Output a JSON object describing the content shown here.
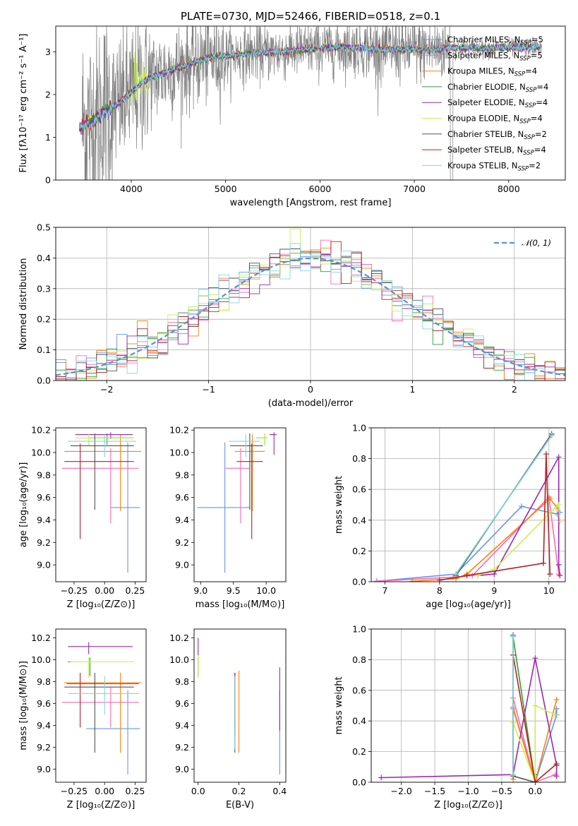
{
  "figure": {
    "title": "PLATE=0730, MJD=52466, FIBERID=0518, z=0.1"
  },
  "models": [
    {
      "name": "Chabrier MILES",
      "nssp": "5",
      "color": "#6495ed"
    },
    {
      "name": "Salpeter MILES",
      "nssp": "5",
      "color": "#ff69b4"
    },
    {
      "name": "Kroupa MILES",
      "nssp": "4",
      "color": "#ff7f0e"
    },
    {
      "name": "Chabrier ELODIE",
      "nssp": "4",
      "color": "#2ca02c"
    },
    {
      "name": "Salpeter ELODIE",
      "nssp": "4",
      "color": "#9c27b0"
    },
    {
      "name": "Kroupa ELODIE",
      "nssp": "4",
      "color": "#c8f050"
    },
    {
      "name": "Chabrier STELIB",
      "nssp": "2",
      "color": "#505050"
    },
    {
      "name": "Salpeter STELIB",
      "nssp": "4",
      "color": "#b22222"
    },
    {
      "name": "Kroupa STELIB",
      "nssp": "2",
      "color": "#7fd8e0"
    }
  ],
  "chart_data": [
    {
      "id": "spectrum",
      "type": "line",
      "title": "PLATE=0730, MJD=52466, FIBERID=0518, z=0.1",
      "xlabel": "wavelength [Angstrom, rest frame]",
      "ylabel": "Flux [fλ10⁻¹⁷ erg cm⁻² s⁻¹ A⁻¹]",
      "xlim": [
        3200,
        8600
      ],
      "ylim": [
        0,
        3.6
      ],
      "xticks": [
        "4000",
        "5000",
        "6000",
        "7000",
        "8000"
      ],
      "yticks": [
        "0",
        "1",
        "2",
        "3"
      ],
      "continuum": [
        [
          3450,
          1.25
        ],
        [
          3600,
          1.35
        ],
        [
          3700,
          1.55
        ],
        [
          3800,
          1.7
        ],
        [
          3900,
          1.85
        ],
        [
          4000,
          2.05
        ],
        [
          4100,
          2.25
        ],
        [
          4200,
          2.4
        ],
        [
          4400,
          2.55
        ],
        [
          4600,
          2.7
        ],
        [
          4800,
          2.85
        ],
        [
          5000,
          2.9
        ],
        [
          5200,
          2.95
        ],
        [
          5400,
          2.98
        ],
        [
          5600,
          3.0
        ],
        [
          5800,
          3.05
        ],
        [
          6000,
          3.08
        ],
        [
          6200,
          3.1
        ],
        [
          6400,
          3.1
        ],
        [
          6600,
          3.05
        ],
        [
          6800,
          3.05
        ],
        [
          7000,
          3.05
        ],
        [
          7200,
          3.05
        ],
        [
          7400,
          3.1
        ],
        [
          7800,
          3.08
        ],
        [
          8100,
          3.1
        ],
        [
          8350,
          3.12
        ]
      ],
      "legend_position": "upper right"
    },
    {
      "id": "residuals",
      "type": "line",
      "xlabel": "(data-model)/error",
      "ylabel": "Normed distribution",
      "xlim": [
        -2.5,
        2.5
      ],
      "ylim": [
        0,
        0.5
      ],
      "xticks": [
        "−2",
        "−1",
        "0",
        "1",
        "2"
      ],
      "yticks": [
        "0.0",
        "0.1",
        "0.2",
        "0.3",
        "0.4",
        "0.5"
      ],
      "grid": true,
      "reference": {
        "name": "𝒩(0, 1)",
        "mean": 0,
        "sigma": 1,
        "color": "#5b8ed6"
      },
      "bin_width": 0.1,
      "legend_position": "upper right"
    },
    {
      "id": "age-vs-Z",
      "type": "scatter",
      "xlabel": "Z [log₁₀(Z/Z⊙)]",
      "ylabel": "age  [log₁₀(age/yr)]",
      "xlim": [
        -0.4,
        0.34
      ],
      "ylim": [
        8.85,
        10.22
      ],
      "xticks": [
        -0.25,
        0.0,
        0.25
      ],
      "yticks": [
        9.0,
        9.2,
        9.4,
        9.6,
        9.8,
        10.0,
        10.2
      ],
      "points": [
        {
          "model": 0,
          "x": 0.19,
          "xlo": 0.05,
          "xhi": 0.29,
          "y": 9.51,
          "ylo": 8.93,
          "yhi": 10.09
        },
        {
          "model": 1,
          "x": 0.05,
          "xlo": -0.35,
          "xhi": 0.28,
          "y": 9.86,
          "ylo": 9.37,
          "yhi": 10.04
        },
        {
          "model": 2,
          "x": 0.13,
          "xlo": -0.33,
          "xhi": 0.3,
          "y": 10.01,
          "ylo": 9.48,
          "yhi": 10.16
        },
        {
          "model": 3,
          "x": 0.02,
          "xlo": -0.12,
          "xhi": 0.23,
          "y": 10.13,
          "ylo": 10.07,
          "yhi": 10.17
        },
        {
          "model": 4,
          "x": 0.05,
          "xlo": -0.24,
          "xhi": 0.23,
          "y": 10.16,
          "ylo": 10.12,
          "yhi": 10.18
        },
        {
          "model": 5,
          "x": -0.13,
          "xlo": -0.24,
          "xhi": 0.24,
          "y": 10.13,
          "ylo": 10.06,
          "yhi": 10.17
        },
        {
          "model": 6,
          "x": -0.08,
          "xlo": -0.28,
          "xhi": 0.24,
          "y": 10.06,
          "ylo": 9.49,
          "yhi": 10.17
        },
        {
          "model": 7,
          "x": -0.2,
          "xlo": -0.33,
          "xhi": 0.24,
          "y": 9.92,
          "ylo": 9.23,
          "yhi": 10.08
        },
        {
          "model": 8,
          "x": 0.0,
          "xlo": -0.3,
          "xhi": 0.26,
          "y": 10.1,
          "ylo": 9.96,
          "yhi": 10.16
        }
      ]
    },
    {
      "id": "age-vs-mass",
      "type": "scatter",
      "xlabel": "mass [log₁₀(M/M⊙)]",
      "ylabel": "",
      "xlim": [
        8.9,
        10.3
      ],
      "ylim": [
        8.85,
        10.22
      ],
      "xticks": [
        9.0,
        9.5,
        10.0
      ],
      "yticks": [
        9.0,
        9.2,
        9.4,
        9.6,
        9.8,
        10.0,
        10.2
      ],
      "points": [
        {
          "model": 0,
          "x": 9.37,
          "xlo": 8.95,
          "xhi": 9.75,
          "y": 9.51,
          "ylo": 8.93,
          "yhi": 10.09
        },
        {
          "model": 1,
          "x": 9.61,
          "xlo": 9.38,
          "xhi": 9.75,
          "y": 9.86,
          "ylo": 9.37,
          "yhi": 10.04
        },
        {
          "model": 2,
          "x": 9.79,
          "xlo": 9.52,
          "xhi": 9.98,
          "y": 10.01,
          "ylo": 9.48,
          "yhi": 10.16
        },
        {
          "model": 3,
          "x": 9.98,
          "xlo": 9.85,
          "xhi": 10.02,
          "y": 10.13,
          "ylo": 10.07,
          "yhi": 10.17
        },
        {
          "model": 4,
          "x": 10.12,
          "xlo": 10.05,
          "xhi": 10.16,
          "y": 10.16,
          "ylo": 9.98,
          "yhi": 10.18
        },
        {
          "model": 5,
          "x": 9.98,
          "xlo": 9.85,
          "xhi": 10.02,
          "y": 10.13,
          "ylo": 10.06,
          "yhi": 10.17
        },
        {
          "model": 6,
          "x": 9.75,
          "xlo": 9.45,
          "xhi": 9.95,
          "y": 10.06,
          "ylo": 9.49,
          "yhi": 10.17
        },
        {
          "model": 7,
          "x": 9.78,
          "xlo": 9.55,
          "xhi": 9.95,
          "y": 9.92,
          "ylo": 9.23,
          "yhi": 10.08
        },
        {
          "model": 8,
          "x": 9.69,
          "xlo": 9.43,
          "xhi": 9.9,
          "y": 10.1,
          "ylo": 9.96,
          "yhi": 10.16
        }
      ]
    },
    {
      "id": "weight-vs-age",
      "type": "line",
      "xlabel": "age  [log₁₀(age/yr)]",
      "ylabel": "mass weight",
      "xlim": [
        6.75,
        10.3
      ],
      "ylim": [
        0,
        1.0
      ],
      "xticks": [
        7,
        8,
        9,
        10
      ],
      "yticks": [
        0.0,
        0.2,
        0.4,
        0.6,
        0.8,
        1.0
      ],
      "grid": true,
      "series": [
        {
          "model": 0,
          "x": [
            6.85,
            8.3,
            9.5,
            10.15,
            10.2
          ],
          "y": [
            0.003,
            0.05,
            0.49,
            0.44,
            0.45
          ]
        },
        {
          "model": 1,
          "x": [
            6.85,
            8.25,
            8.6,
            10.0,
            10.18
          ],
          "y": [
            0.003,
            0.03,
            0.04,
            0.55,
            0.05
          ]
        },
        {
          "model": 2,
          "x": [
            7.5,
            8.3,
            8.5,
            10.02,
            10.15
          ],
          "y": [
            0.003,
            0.02,
            0.05,
            0.54,
            0.48
          ]
        },
        {
          "model": 3,
          "x": [
            8.3,
            10.05
          ],
          "y": [
            0.05,
            0.95
          ]
        },
        {
          "model": 4,
          "x": [
            8.7,
            9.0,
            10.18,
            10.18,
            10.2
          ],
          "y": [
            0.04,
            0.05,
            0.81,
            0.11,
            0.04
          ]
        },
        {
          "model": 5,
          "x": [
            8.7,
            9.0,
            10.0,
            10.18,
            10.2
          ],
          "y": [
            0.04,
            0.08,
            0.44,
            0.5,
            0.39
          ]
        },
        {
          "model": 6,
          "x": [
            8.3,
            10.05
          ],
          "y": [
            0.04,
            0.96
          ]
        },
        {
          "model": 7,
          "x": [
            8.0,
            8.5,
            9.9,
            9.95,
            10.02
          ],
          "y": [
            0.01,
            0.04,
            0.12,
            0.83,
            0.05
          ]
        },
        {
          "model": 8,
          "x": [
            8.3,
            10.05
          ],
          "y": [
            0.05,
            0.95
          ]
        }
      ]
    },
    {
      "id": "mass-vs-Z",
      "type": "scatter",
      "xlabel": "Z [log₁₀(Z/Z⊙)]",
      "ylabel": "mass [log₁₀(M/M⊙)]",
      "xlim": [
        -0.4,
        0.34
      ],
      "ylim": [
        8.88,
        10.28
      ],
      "xticks": [
        -0.25,
        0.0,
        0.25
      ],
      "yticks": [
        9.0,
        9.2,
        9.4,
        9.6,
        9.8,
        10.0,
        10.2
      ],
      "points": [
        {
          "model": 0,
          "x": 0.19,
          "xlo": -0.15,
          "xhi": 0.29,
          "y": 9.37,
          "ylo": 8.95,
          "yhi": 9.72
        },
        {
          "model": 1,
          "x": 0.05,
          "xlo": -0.35,
          "xhi": 0.28,
          "y": 9.61,
          "ylo": 9.38,
          "yhi": 9.75
        },
        {
          "model": 2,
          "x": 0.13,
          "xlo": -0.33,
          "xhi": 0.3,
          "y": 9.79,
          "ylo": 9.15,
          "yhi": 9.88
        },
        {
          "model": 3,
          "x": -0.12,
          "xlo": -0.3,
          "xhi": 0.23,
          "y": 9.98,
          "ylo": 9.85,
          "yhi": 10.02
        },
        {
          "model": 4,
          "x": -0.13,
          "xlo": -0.3,
          "xhi": 0.23,
          "y": 10.12,
          "ylo": 10.05,
          "yhi": 10.16
        },
        {
          "model": 5,
          "x": -0.13,
          "xlo": -0.28,
          "xhi": 0.24,
          "y": 9.98,
          "ylo": 9.83,
          "yhi": 10.02
        },
        {
          "model": 6,
          "x": -0.08,
          "xlo": -0.33,
          "xhi": 0.24,
          "y": 9.75,
          "ylo": 9.15,
          "yhi": 9.88
        },
        {
          "model": 7,
          "x": -0.2,
          "xlo": -0.31,
          "xhi": 0.28,
          "y": 9.78,
          "ylo": 9.38,
          "yhi": 9.88
        },
        {
          "model": 8,
          "x": 0.0,
          "xlo": -0.3,
          "xhi": 0.28,
          "y": 9.69,
          "ylo": 9.5,
          "yhi": 9.85
        }
      ]
    },
    {
      "id": "mass-vs-ebv",
      "type": "scatter",
      "xlabel": "E(B-V)",
      "ylabel": "",
      "xlim": [
        -0.02,
        0.43
      ],
      "ylim": [
        8.88,
        10.28
      ],
      "xticks": [
        0.0,
        0.2,
        0.4
      ],
      "yticks": [
        9.0,
        9.2,
        9.4,
        9.6,
        9.8,
        10.0,
        10.2
      ],
      "points": [
        {
          "model": 0,
          "x": 0.4,
          "y": 9.37,
          "ylo": 8.95,
          "yhi": 9.72
        },
        {
          "model": 1,
          "x": 0.18,
          "y": 9.61,
          "ylo": 9.38,
          "yhi": 9.75
        },
        {
          "model": 2,
          "x": 0.2,
          "y": 9.79,
          "ylo": 9.15,
          "yhi": 9.9
        },
        {
          "model": 3,
          "x": 0.0,
          "y": 9.98,
          "ylo": 9.85,
          "yhi": 10.02
        },
        {
          "model": 4,
          "x": 0.4,
          "y": 9.75,
          "ylo": 9.35,
          "yhi": 9.93
        },
        {
          "model": 5,
          "x": 0.0,
          "y": 9.98,
          "ylo": 9.83,
          "yhi": 10.1
        },
        {
          "model": 6,
          "x": 0.18,
          "y": 9.75,
          "ylo": 9.15,
          "yhi": 9.88
        },
        {
          "model": 7,
          "x": 0.18,
          "y": 9.78,
          "ylo": 9.3,
          "yhi": 9.88
        },
        {
          "model": 8,
          "x": 0.18,
          "y": 9.69,
          "ylo": 9.18,
          "yhi": 9.85
        },
        {
          "model": 4,
          "x": 0.0,
          "y": 10.12,
          "ylo": 10.04,
          "yhi": 10.2
        }
      ]
    },
    {
      "id": "weight-vs-Z",
      "type": "line",
      "xlabel": "Z [log₁₀(Z/Z⊙)]",
      "ylabel": "mass weight",
      "xlim": [
        -2.45,
        0.45
      ],
      "ylim": [
        0,
        1.0
      ],
      "xticks": [
        -2.0,
        -1.5,
        -1.0,
        -0.5,
        0.0
      ],
      "yticks": [
        0.0,
        0.2,
        0.4,
        0.6,
        0.8,
        1.0
      ],
      "grid": true,
      "series": [
        {
          "model": 0,
          "x": [
            -0.33,
            0.0,
            0.32,
            0.32,
            0.3
          ],
          "y": [
            0.49,
            0.0,
            0.44,
            0.48,
            0.44
          ]
        },
        {
          "model": 1,
          "x": [
            -0.33,
            0.0,
            0.3
          ],
          "y": [
            0.55,
            0.0,
            0.05
          ]
        },
        {
          "model": 2,
          "x": [
            -0.33,
            -0.33,
            0.0,
            0.32
          ],
          "y": [
            0.02,
            0.48,
            0.0,
            0.54
          ]
        },
        {
          "model": 3,
          "x": [
            -0.33,
            0.0,
            0.0
          ],
          "y": [
            0.95,
            0.0,
            0.05
          ]
        },
        {
          "model": 4,
          "x": [
            -2.3,
            -0.33,
            0.0,
            0.32,
            0.32
          ],
          "y": [
            0.03,
            0.05,
            0.81,
            0.11,
            0.04
          ]
        },
        {
          "model": 5,
          "x": [
            -0.33,
            0.0,
            0.0,
            0.3
          ],
          "y": [
            0.39,
            0.0,
            0.5,
            0.44
          ]
        },
        {
          "model": 6,
          "x": [
            -0.33,
            -0.33,
            0.0
          ],
          "y": [
            0.96,
            0.04,
            0.0
          ]
        },
        {
          "model": 7,
          "x": [
            -0.33,
            0.0,
            0.32
          ],
          "y": [
            0.83,
            0.0,
            0.12
          ]
        },
        {
          "model": 8,
          "x": [
            -0.33,
            -0.33
          ],
          "y": [
            0.95,
            0.05
          ]
        }
      ]
    }
  ]
}
